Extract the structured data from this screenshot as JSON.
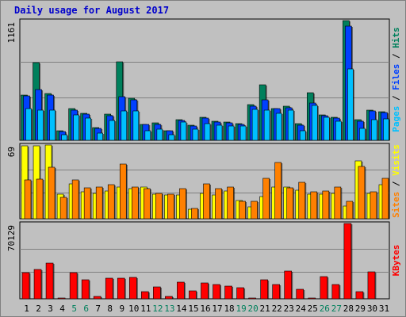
{
  "title": "Daily usage for August 2017",
  "colors": {
    "hits": "#00805c",
    "files": "#0040ff",
    "pages": "#00c0ff",
    "visits": "#ffff00",
    "sites": "#ff8000",
    "kbytes": "#ff0000",
    "weekend_label": "#00805c",
    "weekday_label": "#000000",
    "legend_sep": "#000000",
    "plot_bg": "#c0c0c0",
    "grid": "#808080",
    "title": "#0000cc"
  },
  "chart_data": [
    {
      "type": "bar",
      "panel": "top",
      "ymax_label": "1161",
      "ylim": [
        0,
        1161
      ],
      "legend": [
        "Pages",
        "Files",
        "Hits"
      ],
      "grid": true,
      "categories": [
        "1",
        "2",
        "3",
        "4",
        "5",
        "6",
        "7",
        "8",
        "9",
        "10",
        "11",
        "12",
        "13",
        "14",
        "15",
        "16",
        "17",
        "18",
        "19",
        "20",
        "21",
        "22",
        "23",
        "24",
        "25",
        "26",
        "27",
        "28",
        "29",
        "30",
        "31"
      ],
      "series": [
        {
          "name": "Hits",
          "values": [
            442,
            752,
            456,
            94,
            304,
            258,
            125,
            254,
            759,
            408,
            157,
            170,
            95,
            201,
            143,
            223,
            182,
            176,
            162,
            343,
            541,
            310,
            327,
            158,
            460,
            246,
            226,
            1161,
            203,
            290,
            280
          ]
        },
        {
          "name": "Files",
          "values": [
            428,
            494,
            442,
            81,
            290,
            250,
            112,
            240,
            420,
            392,
            150,
            155,
            90,
            190,
            135,
            215,
            175,
            170,
            155,
            328,
            389,
            306,
            315,
            145,
            358,
            237,
            215,
            1106,
            185,
            282,
            269
          ]
        },
        {
          "name": "Pages",
          "values": [
            304,
            295,
            290,
            56,
            245,
            216,
            68,
            193,
            285,
            286,
            95,
            104,
            57,
            176,
            110,
            158,
            148,
            136,
            141,
            300,
            290,
            259,
            290,
            91,
            340,
            220,
            188,
            690,
            113,
            200,
            210
          ]
        }
      ]
    },
    {
      "type": "bar",
      "panel": "middle",
      "ymax_label": "69",
      "ylim": [
        0,
        69
      ],
      "legend": [
        "Sites",
        "Visits"
      ],
      "grid": true,
      "categories": [
        "1",
        "2",
        "3",
        "4",
        "5",
        "6",
        "7",
        "8",
        "9",
        "10",
        "11",
        "12",
        "13",
        "14",
        "15",
        "16",
        "17",
        "18",
        "19",
        "20",
        "21",
        "22",
        "23",
        "24",
        "25",
        "26",
        "27",
        "28",
        "29",
        "30",
        "31"
      ],
      "series": [
        {
          "name": "Visits",
          "values": [
            68,
            68,
            69,
            23,
            33,
            25,
            24,
            26,
            30,
            28,
            30,
            23,
            22,
            22,
            9,
            24,
            22,
            26,
            17,
            11,
            21,
            30,
            30,
            27,
            23,
            23,
            24,
            12,
            54,
            24,
            32
          ]
        },
        {
          "name": "Sites",
          "values": [
            36,
            37,
            48,
            20,
            36,
            29,
            30,
            32,
            51,
            30,
            28,
            24,
            23,
            28,
            10,
            33,
            28,
            30,
            16,
            16,
            38,
            53,
            29,
            34,
            25,
            26,
            30,
            16,
            49,
            25,
            38
          ]
        }
      ]
    },
    {
      "type": "bar",
      "panel": "bottom",
      "ymax_label": "70129",
      "ylim": [
        0,
        70129
      ],
      "legend": [
        "KBytes"
      ],
      "grid": true,
      "categories": [
        "1",
        "2",
        "3",
        "4",
        "5",
        "6",
        "7",
        "8",
        "9",
        "10",
        "11",
        "12",
        "13",
        "14",
        "15",
        "16",
        "17",
        "18",
        "19",
        "20",
        "21",
        "22",
        "23",
        "24",
        "25",
        "26",
        "27",
        "28",
        "29",
        "30",
        "31"
      ],
      "series": [
        {
          "name": "KBytes",
          "values": [
            24000,
            27000,
            33000,
            1000,
            24000,
            18000,
            2500,
            19500,
            19000,
            20000,
            7000,
            11000,
            2500,
            15500,
            7500,
            14500,
            13000,
            12000,
            10000,
            1000,
            17500,
            13000,
            26000,
            9000,
            1000,
            21000,
            13000,
            70129,
            7000,
            25000,
            0
          ]
        }
      ]
    }
  ],
  "x_labels": {
    "days": [
      "1",
      "2",
      "3",
      "4",
      "5",
      "6",
      "7",
      "8",
      "9",
      "10",
      "11",
      "12",
      "13",
      "14",
      "15",
      "16",
      "17",
      "18",
      "19",
      "20",
      "21",
      "22",
      "23",
      "24",
      "25",
      "26",
      "27",
      "28",
      "29",
      "30",
      "31"
    ],
    "weekend": [
      5,
      6,
      12,
      13,
      19,
      20,
      26,
      27
    ]
  }
}
